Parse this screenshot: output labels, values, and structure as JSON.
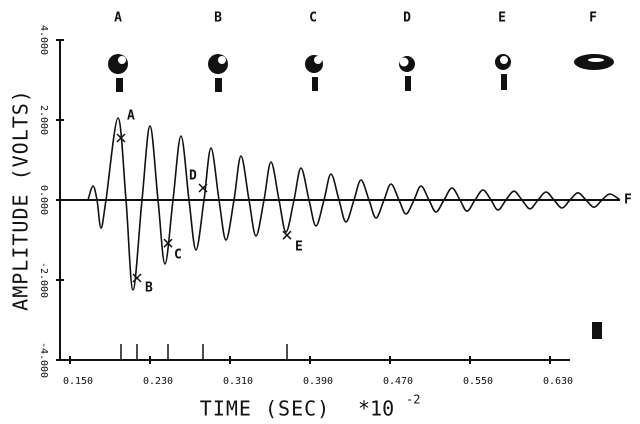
{
  "chart_data": {
    "type": "line",
    "x_label": "TIME (SEC)",
    "x_multiplier": "*10",
    "x_exponent": "-2",
    "y_label": "AMPLITUDE (VOLTS)",
    "frames": [
      "A",
      "B",
      "C",
      "D",
      "E",
      "F"
    ],
    "end_label": "F",
    "color": "#111111",
    "grid": false,
    "xlim": [
      0.14,
      0.7
    ],
    "ylim": [
      -4,
      4
    ],
    "xticks": [
      {
        "value": 0.15,
        "label": "0.150"
      },
      {
        "value": 0.23,
        "label": "0.230"
      },
      {
        "value": 0.31,
        "label": "0.310"
      },
      {
        "value": 0.39,
        "label": "0.390"
      },
      {
        "value": 0.47,
        "label": "0.470"
      },
      {
        "value": 0.55,
        "label": "0.550"
      },
      {
        "value": 0.63,
        "label": "0.630"
      }
    ],
    "yticks": [
      {
        "value": -4,
        "label": "-4.000"
      },
      {
        "value": -2,
        "label": "-2.000"
      },
      {
        "value": 0,
        "label": "0.000"
      },
      {
        "value": 2,
        "label": "2.000"
      },
      {
        "value": 4,
        "label": "4.000"
      }
    ],
    "x": [
      0.168,
      0.173,
      0.177,
      0.181,
      0.186,
      0.198,
      0.206,
      0.213,
      0.222,
      0.23,
      0.238,
      0.245,
      0.253,
      0.261,
      0.269,
      0.276,
      0.284,
      0.291,
      0.299,
      0.306,
      0.314,
      0.321,
      0.329,
      0.336,
      0.344,
      0.351,
      0.359,
      0.366,
      0.374,
      0.381,
      0.389,
      0.396,
      0.404,
      0.411,
      0.419,
      0.426,
      0.434,
      0.441,
      0.449,
      0.456,
      0.464,
      0.471,
      0.479,
      0.486,
      0.494,
      0.501,
      0.509,
      0.516,
      0.524,
      0.532,
      0.54,
      0.547,
      0.555,
      0.563,
      0.571,
      0.578,
      0.586,
      0.594,
      0.602,
      0.61,
      0.618,
      0.626,
      0.634,
      0.642,
      0.65,
      0.658,
      0.666,
      0.674,
      0.682,
      0.69,
      0.7
    ],
    "values": [
      0,
      0.35,
      0,
      -0.7,
      0,
      2.05,
      0,
      -2.25,
      0,
      1.85,
      0,
      -1.6,
      0,
      1.6,
      0,
      -1.25,
      0,
      1.3,
      0,
      -1.0,
      0,
      1.1,
      0,
      -0.9,
      0,
      0.95,
      0,
      -0.8,
      0,
      0.8,
      0,
      -0.65,
      0,
      0.65,
      0,
      -0.55,
      0,
      0.5,
      0,
      -0.45,
      0,
      0.4,
      0,
      -0.35,
      0,
      0.35,
      0,
      -0.3,
      0,
      0.3,
      0,
      -0.28,
      0,
      0.25,
      0,
      -0.25,
      0,
      0.22,
      0,
      -0.22,
      0,
      0.2,
      0,
      -0.2,
      0,
      0.18,
      0,
      -0.18,
      0,
      0.15,
      0
    ],
    "annotations": [
      {
        "label": "A",
        "x": 0.201,
        "y": 1.55
      },
      {
        "label": "B",
        "x": 0.217,
        "y": -1.95
      },
      {
        "label": "C",
        "x": 0.248,
        "y": -1.08
      },
      {
        "label": "D",
        "x": 0.283,
        "y": 0.3
      },
      {
        "label": "E",
        "x": 0.367,
        "y": -0.88
      }
    ]
  }
}
